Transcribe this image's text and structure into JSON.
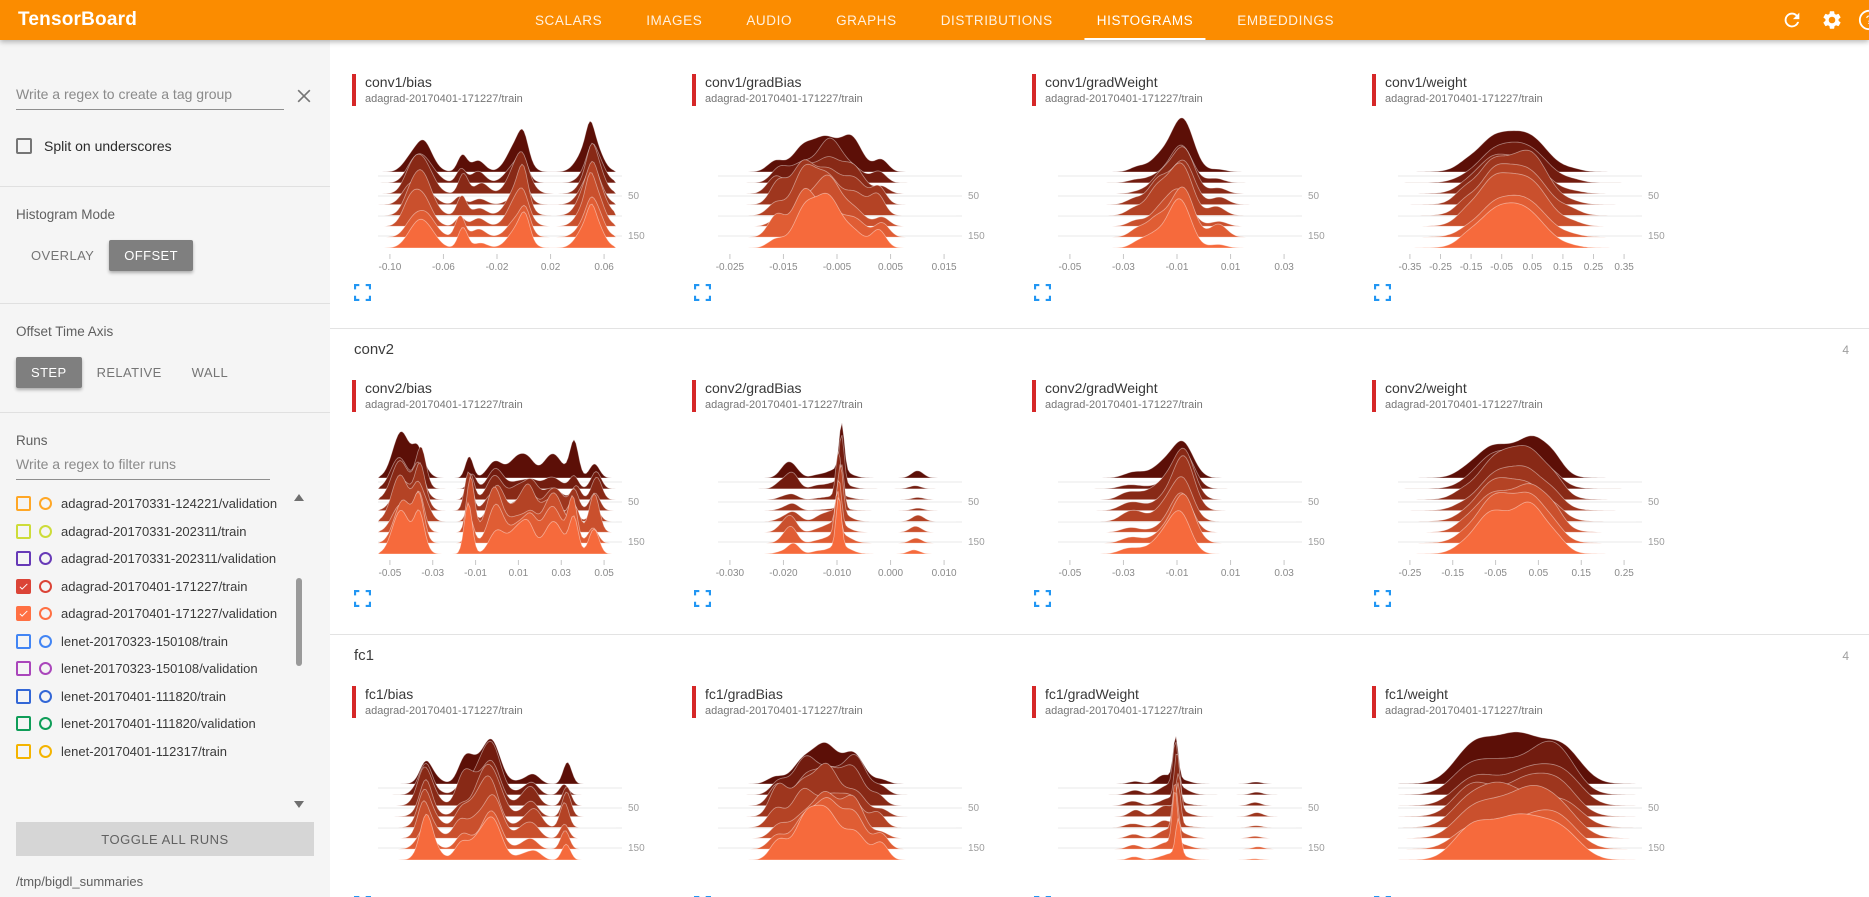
{
  "colors": {
    "header_bg": "#fb8c00",
    "run_accent": "#d62728",
    "expand_blue": "#2196f3",
    "ridge_dark": "#5c0f07",
    "ridge_light": "#f66a3c",
    "gridline": "#e8e8e8"
  },
  "header": {
    "title": "TensorBoard",
    "tabs": [
      "SCALARS",
      "IMAGES",
      "AUDIO",
      "GRAPHS",
      "DISTRIBUTIONS",
      "HISTOGRAMS",
      "EMBEDDINGS"
    ],
    "active_tab": "HISTOGRAMS",
    "icons": [
      "refresh-icon",
      "settings-icon",
      "help-icon"
    ]
  },
  "sidebar": {
    "tag_filter_placeholder": "Write a regex to create a tag group",
    "split_on_underscores": {
      "label": "Split on underscores",
      "checked": false
    },
    "histogram_mode": {
      "label": "Histogram Mode",
      "options": [
        "OVERLAY",
        "OFFSET"
      ],
      "selected": "OFFSET"
    },
    "offset_time_axis": {
      "label": "Offset Time Axis",
      "options": [
        "STEP",
        "RELATIVE",
        "WALL"
      ],
      "selected": "STEP"
    },
    "runs": {
      "label": "Runs",
      "filter_placeholder": "Write a regex to filter runs",
      "items": [
        {
          "label": "adagrad-20170331-124221/validation",
          "checked": false,
          "color": "#ffa726"
        },
        {
          "label": "adagrad-20170331-202311/train",
          "checked": false,
          "color": "#cddc39"
        },
        {
          "label": "adagrad-20170331-202311/validation",
          "checked": false,
          "color": "#673ab7"
        },
        {
          "label": "adagrad-20170401-171227/train",
          "checked": true,
          "color": "#db4437"
        },
        {
          "label": "adagrad-20170401-171227/validation",
          "checked": true,
          "color": "#ff7043"
        },
        {
          "label": "lenet-20170323-150108/train",
          "checked": false,
          "color": "#4285f4"
        },
        {
          "label": "lenet-20170323-150108/validation",
          "checked": false,
          "color": "#aa46bb"
        },
        {
          "label": "lenet-20170401-111820/train",
          "checked": false,
          "color": "#3367d6"
        },
        {
          "label": "lenet-20170401-111820/validation",
          "checked": false,
          "color": "#0f9d58"
        },
        {
          "label": "lenet-20170401-112317/train",
          "checked": false,
          "color": "#f4b400"
        }
      ],
      "toggle_all_label": "TOGGLE ALL RUNS"
    },
    "log_dir": "/tmp/bigdl_summaries"
  },
  "main": {
    "chart_type": "histogram-ridge-offset",
    "sections": [
      {
        "name": "conv1",
        "header_visible": false,
        "count": "",
        "cards": [
          {
            "tag": "conv1/bias",
            "run": "adagrad-20170401-171227/train",
            "shape": "jagged",
            "xticks": [
              "-0.10",
              "-0.06",
              "-0.02",
              "0.02",
              "0.06"
            ],
            "yticks": [
              "50",
              "150"
            ]
          },
          {
            "tag": "conv1/gradBias",
            "run": "adagrad-20170401-171227/train",
            "shape": "multimodal",
            "xticks": [
              "-0.025",
              "-0.015",
              "-0.005",
              "0.005",
              "0.015"
            ],
            "yticks": [
              "50",
              "150"
            ]
          },
          {
            "tag": "conv1/gradWeight",
            "run": "adagrad-20170401-171227/train",
            "shape": "peak",
            "xticks": [
              "-0.05",
              "-0.03",
              "-0.01",
              "0.01",
              "0.03"
            ],
            "yticks": [
              "50",
              "150"
            ]
          },
          {
            "tag": "conv1/weight",
            "run": "adagrad-20170401-171227/train",
            "shape": "bell",
            "xticks": [
              "-0.35",
              "-0.25",
              "-0.15",
              "-0.05",
              "0.05",
              "0.15",
              "0.25",
              "0.35"
            ],
            "yticks": [
              "50",
              "150"
            ]
          }
        ]
      },
      {
        "name": "conv2",
        "header_visible": true,
        "count": "4",
        "cards": [
          {
            "tag": "conv2/bias",
            "run": "adagrad-20170401-171227/train",
            "shape": "jagged",
            "xticks": [
              "-0.05",
              "-0.03",
              "-0.01",
              "0.01",
              "0.03",
              "0.05"
            ],
            "yticks": [
              "50",
              "150"
            ]
          },
          {
            "tag": "conv2/gradBias",
            "run": "adagrad-20170401-171227/train",
            "shape": "spike",
            "xticks": [
              "-0.030",
              "-0.020",
              "-0.010",
              "0.000",
              "0.010"
            ],
            "yticks": [
              "50",
              "150"
            ]
          },
          {
            "tag": "conv2/gradWeight",
            "run": "adagrad-20170401-171227/train",
            "shape": "peak",
            "xticks": [
              "-0.05",
              "-0.03",
              "-0.01",
              "0.01",
              "0.03"
            ],
            "yticks": [
              "50",
              "150"
            ]
          },
          {
            "tag": "conv2/weight",
            "run": "adagrad-20170401-171227/train",
            "shape": "bell",
            "xticks": [
              "-0.25",
              "-0.15",
              "-0.05",
              "0.05",
              "0.15",
              "0.25"
            ],
            "yticks": [
              "50",
              "150"
            ]
          }
        ]
      },
      {
        "name": "fc1",
        "header_visible": true,
        "count": "4",
        "cards": [
          {
            "tag": "fc1/bias",
            "run": "adagrad-20170401-171227/train",
            "shape": "jagged",
            "xticks": [],
            "yticks": [
              "50",
              "150"
            ]
          },
          {
            "tag": "fc1/gradBias",
            "run": "adagrad-20170401-171227/train",
            "shape": "multimodal",
            "xticks": [],
            "yticks": [
              "50",
              "150"
            ]
          },
          {
            "tag": "fc1/gradWeight",
            "run": "adagrad-20170401-171227/train",
            "shape": "spike",
            "xticks": [],
            "yticks": [
              "50",
              "150"
            ]
          },
          {
            "tag": "fc1/weight",
            "run": "adagrad-20170401-171227/train",
            "shape": "plateau",
            "xticks": [],
            "yticks": [
              "50",
              "150"
            ]
          }
        ]
      }
    ]
  }
}
